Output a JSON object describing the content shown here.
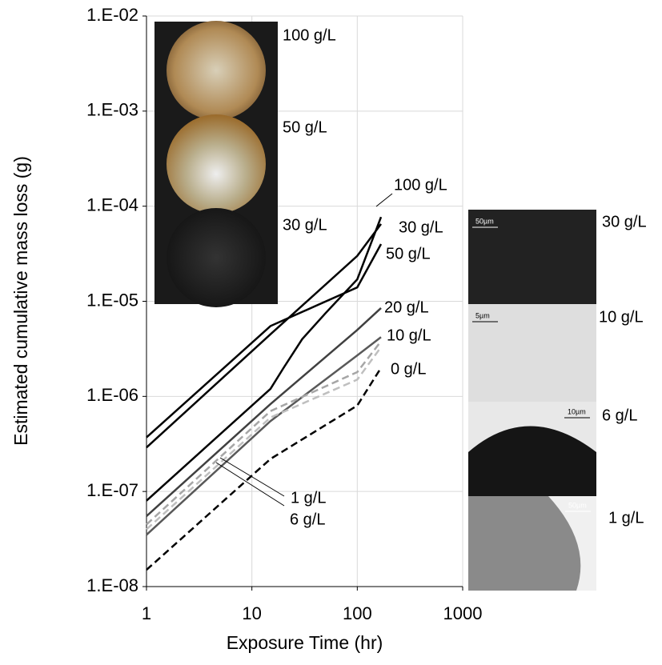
{
  "chart_data": {
    "type": "line",
    "y_label": "Estimated cumulative mass loss (g)",
    "x_label": "Exposure Time (hr)",
    "xlog": true,
    "ylog": true,
    "grid": true,
    "xlim": [
      1,
      1000
    ],
    "xticks": [
      1,
      10,
      100,
      1000
    ],
    "ylim": [
      1e-08,
      0.01
    ],
    "yticks": [
      {
        "value": 1e-08,
        "label": "1.E-08"
      },
      {
        "value": 1e-07,
        "label": "1.E-07"
      },
      {
        "value": 1e-06,
        "label": "1.E-06"
      },
      {
        "value": 1e-05,
        "label": "1.E-05"
      },
      {
        "value": 0.0001,
        "label": "1.E-04"
      },
      {
        "value": 0.001,
        "label": "1.E-03"
      },
      {
        "value": 0.01,
        "label": "1.E-02"
      }
    ],
    "series": [
      {
        "name": "100 g/L",
        "color": "#000000",
        "dash": false,
        "x": [
          1,
          15,
          20,
          30,
          50,
          100,
          168
        ],
        "values": [
          8e-08,
          1.2e-06,
          2e-06,
          4e-06,
          7.5e-06,
          1.7e-05,
          7.7e-05
        ]
      },
      {
        "name": "30 g/L",
        "color": "#000000",
        "dash": false,
        "x": [
          1,
          15,
          100,
          168
        ],
        "values": [
          2.9e-07,
          4.5e-06,
          3e-05,
          6.5e-05
        ]
      },
      {
        "name": "50 g/L",
        "color": "#000000",
        "dash": false,
        "x": [
          1,
          15,
          100,
          168
        ],
        "values": [
          3.7e-07,
          5.5e-06,
          1.4e-05,
          4e-05
        ]
      },
      {
        "name": "20 g/L",
        "color": "#404040",
        "dash": false,
        "x": [
          1,
          15,
          100,
          168
        ],
        "values": [
          5.5e-08,
          8.3e-07,
          5e-06,
          8.5e-06
        ]
      },
      {
        "name": "10 g/L",
        "color": "#595959",
        "dash": false,
        "x": [
          1,
          15,
          100,
          168
        ],
        "values": [
          3.5e-08,
          5.5e-07,
          2.7e-06,
          4.2e-06
        ]
      },
      {
        "name": "6 g/L",
        "color": "#a6a6a6",
        "dash": true,
        "x": [
          1,
          15,
          100,
          168
        ],
        "values": [
          4.5e-08,
          7e-07,
          1.8e-06,
          3.8e-06
        ]
      },
      {
        "name": "1 g/L",
        "color": "#bfbfbf",
        "dash": true,
        "x": [
          1,
          15,
          100,
          168
        ],
        "values": [
          4e-08,
          6e-07,
          1.5e-06,
          3.3e-06
        ]
      },
      {
        "name": "0 g/L",
        "color": "#000000",
        "dash": true,
        "x": [
          1,
          15,
          100,
          168
        ],
        "values": [
          1.5e-08,
          2.2e-07,
          8e-07,
          2e-06
        ]
      }
    ],
    "inset_labels": [
      "100 g/L",
      "50 g/L",
      "30 g/L"
    ],
    "micrograph_labels": [
      "30 g/L",
      "10 g/L",
      "6 g/L",
      "1 g/L"
    ],
    "scale_bars": [
      "50µm",
      "5µm",
      "10µm",
      "50µm"
    ]
  }
}
